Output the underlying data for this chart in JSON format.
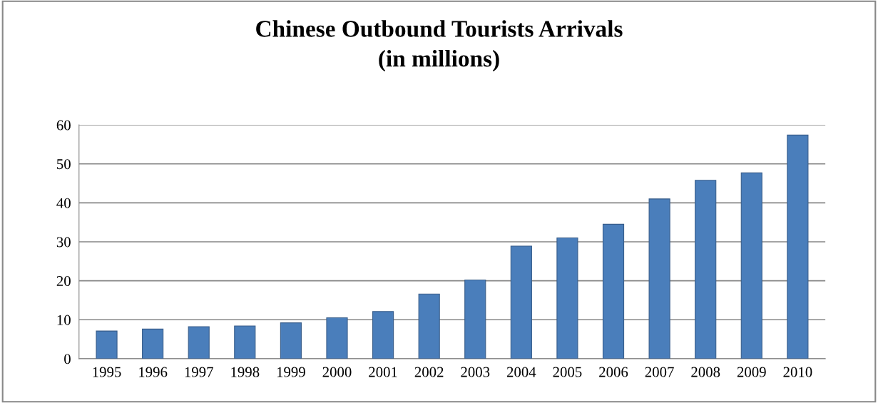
{
  "chart_data": {
    "type": "bar",
    "title": "Chinese Outbound Tourists Arrivals\n(in millions)",
    "categories": [
      "1995",
      "1996",
      "1997",
      "1998",
      "1999",
      "2000",
      "2001",
      "2002",
      "2003",
      "2004",
      "2005",
      "2006",
      "2007",
      "2008",
      "2009",
      "2010"
    ],
    "values": [
      7.1,
      7.6,
      8.2,
      8.4,
      9.2,
      10.5,
      12.1,
      16.6,
      20.2,
      28.9,
      31.0,
      34.5,
      41.0,
      45.8,
      47.7,
      57.4
    ],
    "color": "#4a7ebb",
    "ylim": [
      0,
      60
    ],
    "yticks": [
      0,
      10,
      20,
      30,
      40,
      50,
      60
    ],
    "grid": "y"
  }
}
